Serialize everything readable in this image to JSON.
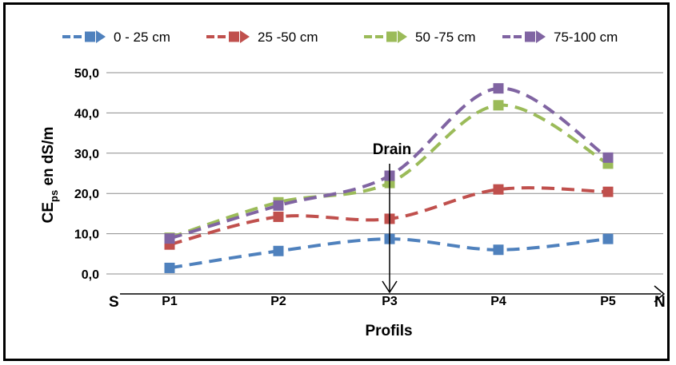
{
  "chart_data": {
    "type": "line",
    "categories": [
      "P1",
      "P2",
      "P3",
      "P4",
      "P5"
    ],
    "series": [
      {
        "name": "0 - 25 cm",
        "color": "#4f81bd",
        "values": [
          1.5,
          5.7,
          8.7,
          6.0,
          8.7
        ]
      },
      {
        "name": "25 -50 cm",
        "color": "#c0504d",
        "values": [
          7.3,
          14.2,
          13.7,
          21.0,
          20.4
        ]
      },
      {
        "name": "50 -75 cm",
        "color": "#9bbb59",
        "values": [
          9.0,
          17.8,
          22.6,
          41.9,
          27.4
        ]
      },
      {
        "name": "75-100 cm",
        "color": "#8064a2",
        "values": [
          8.8,
          17.0,
          24.4,
          46.1,
          28.9
        ]
      }
    ],
    "ylim": [
      0,
      50
    ],
    "yticks": [
      "0,0",
      "10,0",
      "20,0",
      "30,0",
      "40,0",
      "50,0"
    ],
    "xlabel": "Profils",
    "ylabel_main": "CE",
    "ylabel_sub": "ps",
    "ylabel_rest": " en dS/m",
    "grid": true,
    "legend_position": "top",
    "annotations": {
      "drain": "Drain",
      "south": "S",
      "north": "N"
    }
  }
}
